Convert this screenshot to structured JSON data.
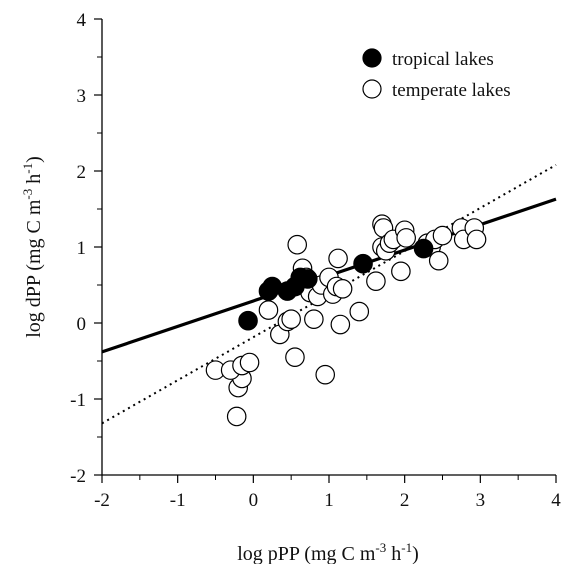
{
  "chart_data": {
    "type": "scatter",
    "title": "",
    "xlabel": {
      "base": "log pPP (mg C m",
      "exp": "-3",
      "mid": " h",
      "exp2": "-1",
      "end": ")"
    },
    "ylabel": {
      "base": "log dPP (mg C m",
      "exp": "-3",
      "mid": " h",
      "exp2": "-1",
      "end": ")"
    },
    "xlim": [
      -2,
      4
    ],
    "ylim": [
      -2,
      4
    ],
    "xticks": [
      -2,
      -1,
      0,
      1,
      2,
      3,
      4
    ],
    "yticks": [
      -2,
      -1,
      0,
      1,
      2,
      3,
      4
    ],
    "xtick_labels": [
      "-2",
      "-1",
      "0",
      "1",
      "2",
      "3",
      "4"
    ],
    "ytick_labels": [
      "-2",
      "-1",
      "0",
      "1",
      "2",
      "3",
      "4"
    ],
    "grid": false,
    "legend_position": "top-right",
    "series": [
      {
        "name": "tropical lakes",
        "marker": "filled-circle",
        "color": "#000000",
        "points": [
          [
            -0.07,
            0.03
          ],
          [
            0.2,
            0.42
          ],
          [
            0.25,
            0.48
          ],
          [
            0.45,
            0.42
          ],
          [
            0.55,
            0.48
          ],
          [
            0.62,
            0.6
          ],
          [
            0.72,
            0.58
          ],
          [
            1.45,
            0.78
          ],
          [
            2.25,
            0.98
          ]
        ]
      },
      {
        "name": "temperate lakes",
        "marker": "open-circle",
        "color": "#000000",
        "points": [
          [
            -0.22,
            -1.23
          ],
          [
            -0.2,
            -0.85
          ],
          [
            -0.15,
            -0.73
          ],
          [
            -0.5,
            -0.62
          ],
          [
            -0.3,
            -0.62
          ],
          [
            -0.15,
            -0.56
          ],
          [
            -0.05,
            -0.52
          ],
          [
            0.2,
            0.17
          ],
          [
            0.35,
            -0.15
          ],
          [
            0.45,
            0.02
          ],
          [
            0.5,
            0.05
          ],
          [
            0.55,
            -0.45
          ],
          [
            0.58,
            1.03
          ],
          [
            0.65,
            0.72
          ],
          [
            0.7,
            0.6
          ],
          [
            0.75,
            0.4
          ],
          [
            0.8,
            0.05
          ],
          [
            0.85,
            0.35
          ],
          [
            0.9,
            0.5
          ],
          [
            0.95,
            -0.68
          ],
          [
            1.0,
            0.6
          ],
          [
            1.05,
            0.38
          ],
          [
            1.1,
            0.48
          ],
          [
            1.12,
            0.85
          ],
          [
            1.15,
            -0.02
          ],
          [
            1.18,
            0.45
          ],
          [
            1.4,
            0.15
          ],
          [
            1.62,
            0.55
          ],
          [
            1.7,
            1.3
          ],
          [
            1.72,
            1.25
          ],
          [
            1.7,
            1.0
          ],
          [
            1.75,
            0.95
          ],
          [
            1.8,
            1.05
          ],
          [
            1.85,
            1.1
          ],
          [
            1.95,
            0.68
          ],
          [
            2.0,
            1.22
          ],
          [
            2.02,
            1.12
          ],
          [
            2.3,
            1.05
          ],
          [
            2.35,
            1.0
          ],
          [
            2.4,
            1.1
          ],
          [
            2.45,
            0.82
          ],
          [
            2.5,
            1.15
          ],
          [
            2.75,
            1.25
          ],
          [
            2.78,
            1.1
          ],
          [
            2.92,
            1.25
          ],
          [
            2.95,
            1.1
          ]
        ]
      }
    ],
    "lines": [
      {
        "style": "solid",
        "from": [
          -2,
          -0.38
        ],
        "to": [
          4,
          1.63
        ]
      },
      {
        "style": "dotted",
        "from": [
          -2,
          -1.32
        ],
        "to": [
          4,
          2.08
        ]
      }
    ]
  }
}
